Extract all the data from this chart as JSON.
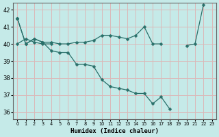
{
  "xlabel": "Humidex (Indice chaleur)",
  "bg_color": "#c5eae8",
  "grid_color": "#dbb8b8",
  "line_color": "#2a706a",
  "xlim": [
    -0.5,
    23.5
  ],
  "ylim": [
    35.6,
    42.4
  ],
  "yticks": [
    36,
    37,
    38,
    39,
    40,
    41,
    42
  ],
  "xticks": [
    0,
    1,
    2,
    3,
    4,
    5,
    6,
    7,
    8,
    9,
    10,
    11,
    12,
    13,
    14,
    15,
    16,
    17,
    18,
    19,
    20,
    21,
    22,
    23
  ],
  "lines": [
    [
      41.5,
      40.0,
      40.3,
      40.1,
      39.6,
      39.5,
      39.5,
      38.8,
      38.8,
      38.7,
      37.9,
      37.5,
      37.4,
      37.3,
      37.1,
      37.1,
      36.5,
      36.9,
      36.2,
      null,
      null,
      null,
      null,
      null
    ],
    [
      41.5,
      40.0,
      40.3,
      40.1,
      40.1,
      40.0,
      40.0,
      40.1,
      40.1,
      40.2,
      40.5,
      40.5,
      40.4,
      40.3,
      40.5,
      41.0,
      40.0,
      40.0,
      null,
      null,
      null,
      null,
      null,
      null
    ],
    [
      41.5,
      null,
      null,
      null,
      null,
      null,
      null,
      null,
      null,
      null,
      null,
      null,
      null,
      null,
      null,
      null,
      null,
      null,
      null,
      null,
      39.9,
      40.0,
      42.3,
      null
    ],
    [
      40.0,
      40.3,
      40.1,
      40.0,
      40.0,
      null,
      null,
      null,
      null,
      null,
      null,
      null,
      null,
      null,
      null,
      null,
      null,
      null,
      null,
      null,
      null,
      null,
      null,
      null
    ]
  ]
}
